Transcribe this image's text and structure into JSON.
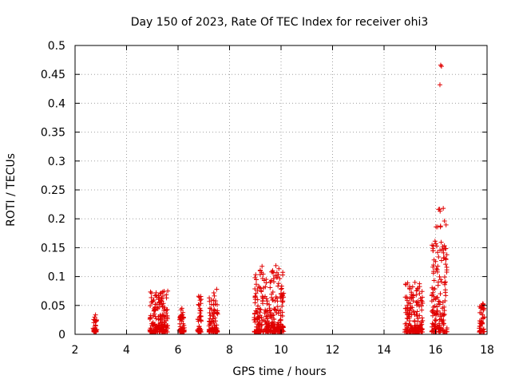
{
  "chart_data": {
    "type": "scatter",
    "title": "Day 150 of 2023, Rate Of TEC Index for receiver ohi3",
    "xlabel": "GPS time / hours",
    "ylabel": "ROTI / TECUs",
    "xlim": [
      2,
      18
    ],
    "ylim": [
      0,
      0.5
    ],
    "xticks": [
      "2",
      "4",
      "6",
      "8",
      "10",
      "12",
      "14",
      "16",
      "18"
    ],
    "yticks": [
      "0",
      "0.05",
      "0.1",
      "0.15",
      "0.2",
      "0.25",
      "0.3",
      "0.35",
      "0.4",
      "0.45",
      "0.5"
    ],
    "grid": true,
    "marker": "+",
    "color": "#e00000",
    "clusters": [
      {
        "x_start": 2.7,
        "x_end": 2.85,
        "y_max": 0.034
      },
      {
        "x_start": 4.9,
        "x_end": 5.6,
        "y_max": 0.075
      },
      {
        "x_start": 6.05,
        "x_end": 6.25,
        "y_max": 0.045
      },
      {
        "x_start": 6.75,
        "x_end": 6.9,
        "y_max": 0.066
      },
      {
        "x_start": 7.2,
        "x_end": 7.55,
        "y_max": 0.078
      },
      {
        "x_start": 8.95,
        "x_end": 10.1,
        "y_max": 0.119
      },
      {
        "x_start": 14.8,
        "x_end": 15.5,
        "y_max": 0.09
      },
      {
        "x_start": 15.85,
        "x_end": 16.45,
        "y_max": 0.218
      },
      {
        "x_start": 17.7,
        "x_end": 17.9,
        "y_max": 0.053
      }
    ],
    "highlighted_points": [
      {
        "x": 16.2,
        "y": 0.466
      },
      {
        "x": 16.23,
        "y": 0.464
      },
      {
        "x": 16.17,
        "y": 0.432
      },
      {
        "x": 16.3,
        "y": 0.218
      },
      {
        "x": 16.02,
        "y": 0.186
      },
      {
        "x": 16.28,
        "y": 0.152
      },
      {
        "x": 16.08,
        "y": 0.142
      },
      {
        "x": 16.35,
        "y": 0.132
      },
      {
        "x": 9.8,
        "y": 0.119
      },
      {
        "x": 16.0,
        "y": 0.126
      },
      {
        "x": 9.7,
        "y": 0.107
      },
      {
        "x": 9.85,
        "y": 0.099
      },
      {
        "x": 15.2,
        "y": 0.09
      },
      {
        "x": 14.85,
        "y": 0.086
      },
      {
        "x": 5.6,
        "y": 0.075
      },
      {
        "x": 7.5,
        "y": 0.078
      },
      {
        "x": 10.1,
        "y": 0.071
      },
      {
        "x": 6.8,
        "y": 0.066
      },
      {
        "x": 6.15,
        "y": 0.045
      }
    ]
  }
}
